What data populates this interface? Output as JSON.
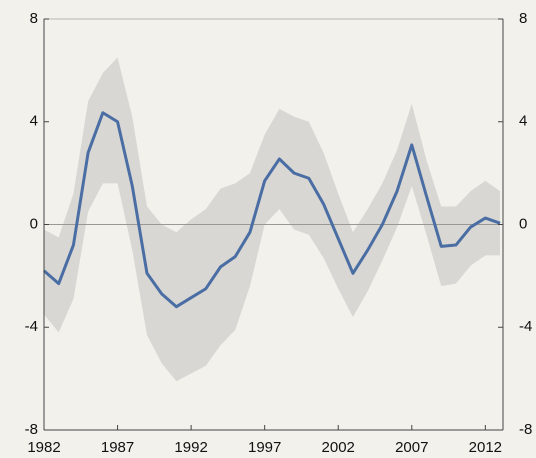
{
  "chart_data": {
    "type": "line",
    "x": [
      1982,
      1983,
      1984,
      1985,
      1986,
      1987,
      1988,
      1989,
      1990,
      1991,
      1992,
      1993,
      1994,
      1995,
      1996,
      1997,
      1998,
      1999,
      2000,
      2001,
      2002,
      2003,
      2004,
      2005,
      2006,
      2007,
      2008,
      2009,
      2010,
      2011,
      2012,
      2013
    ],
    "series": [
      {
        "color": "#4a6ea4",
        "values": [
          -1.8,
          -2.3,
          -0.8,
          2.8,
          4.35,
          4.0,
          1.5,
          -1.9,
          -2.7,
          -3.2,
          -2.85,
          -2.5,
          -1.65,
          -1.25,
          -0.3,
          1.7,
          2.55,
          2.0,
          1.8,
          0.8,
          -0.55,
          -1.9,
          -1.0,
          0.0,
          1.3,
          3.1,
          1.1,
          -0.85,
          -0.8,
          -0.1,
          0.25,
          0.05
        ]
      }
    ],
    "band": {
      "color": "#d9d7d3",
      "upper": [
        -0.2,
        -0.5,
        1.2,
        4.8,
        5.9,
        6.5,
        4.2,
        0.7,
        0.0,
        -0.3,
        0.2,
        0.6,
        1.4,
        1.6,
        2.0,
        3.5,
        4.5,
        4.2,
        4.0,
        2.8,
        1.2,
        -0.3,
        0.6,
        1.6,
        2.9,
        4.7,
        2.5,
        0.7,
        0.7,
        1.3,
        1.7,
        1.3
      ],
      "lower": [
        -3.5,
        -4.2,
        -2.9,
        0.5,
        1.6,
        1.6,
        -1.0,
        -4.3,
        -5.4,
        -6.1,
        -5.8,
        -5.5,
        -4.7,
        -4.1,
        -2.4,
        0.0,
        0.6,
        -0.2,
        -0.4,
        -1.3,
        -2.5,
        -3.6,
        -2.6,
        -1.4,
        -0.1,
        1.5,
        -0.4,
        -2.4,
        -2.3,
        -1.6,
        -1.2,
        -1.2
      ]
    },
    "xlim": [
      1982,
      2013.2
    ],
    "xticks": [
      1982,
      1987,
      1992,
      1997,
      2002,
      2007,
      2012
    ],
    "ylim": [
      -8,
      8
    ],
    "yticks": [
      8,
      4,
      0,
      -4,
      -8
    ],
    "y2lim": [
      -8,
      8
    ],
    "y2ticks": [
      8,
      4,
      0,
      -4,
      -8
    ]
  }
}
